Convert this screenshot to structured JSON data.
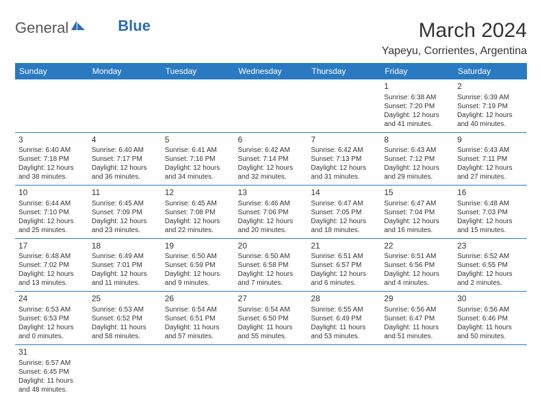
{
  "brand": {
    "general": "General",
    "blue": "Blue"
  },
  "title": "March 2024",
  "location": "Yapeyu, Corrientes, Argentina",
  "colors": {
    "header_bg": "#2a7ac2",
    "header_text": "#ffffff",
    "brand_blue": "#2a6db5",
    "rule": "#2a7ac2",
    "text": "#333333",
    "bg": "#ffffff"
  },
  "weekdays": [
    "Sunday",
    "Monday",
    "Tuesday",
    "Wednesday",
    "Thursday",
    "Friday",
    "Saturday"
  ],
  "weeks": [
    [
      null,
      null,
      null,
      null,
      null,
      {
        "n": "1",
        "sr": "Sunrise: 6:38 AM",
        "ss": "Sunset: 7:20 PM",
        "d1": "Daylight: 12 hours",
        "d2": "and 41 minutes."
      },
      {
        "n": "2",
        "sr": "Sunrise: 6:39 AM",
        "ss": "Sunset: 7:19 PM",
        "d1": "Daylight: 12 hours",
        "d2": "and 40 minutes."
      }
    ],
    [
      {
        "n": "3",
        "sr": "Sunrise: 6:40 AM",
        "ss": "Sunset: 7:18 PM",
        "d1": "Daylight: 12 hours",
        "d2": "and 38 minutes."
      },
      {
        "n": "4",
        "sr": "Sunrise: 6:40 AM",
        "ss": "Sunset: 7:17 PM",
        "d1": "Daylight: 12 hours",
        "d2": "and 36 minutes."
      },
      {
        "n": "5",
        "sr": "Sunrise: 6:41 AM",
        "ss": "Sunset: 7:16 PM",
        "d1": "Daylight: 12 hours",
        "d2": "and 34 minutes."
      },
      {
        "n": "6",
        "sr": "Sunrise: 6:42 AM",
        "ss": "Sunset: 7:14 PM",
        "d1": "Daylight: 12 hours",
        "d2": "and 32 minutes."
      },
      {
        "n": "7",
        "sr": "Sunrise: 6:42 AM",
        "ss": "Sunset: 7:13 PM",
        "d1": "Daylight: 12 hours",
        "d2": "and 31 minutes."
      },
      {
        "n": "8",
        "sr": "Sunrise: 6:43 AM",
        "ss": "Sunset: 7:12 PM",
        "d1": "Daylight: 12 hours",
        "d2": "and 29 minutes."
      },
      {
        "n": "9",
        "sr": "Sunrise: 6:43 AM",
        "ss": "Sunset: 7:11 PM",
        "d1": "Daylight: 12 hours",
        "d2": "and 27 minutes."
      }
    ],
    [
      {
        "n": "10",
        "sr": "Sunrise: 6:44 AM",
        "ss": "Sunset: 7:10 PM",
        "d1": "Daylight: 12 hours",
        "d2": "and 25 minutes."
      },
      {
        "n": "11",
        "sr": "Sunrise: 6:45 AM",
        "ss": "Sunset: 7:09 PM",
        "d1": "Daylight: 12 hours",
        "d2": "and 23 minutes."
      },
      {
        "n": "12",
        "sr": "Sunrise: 6:45 AM",
        "ss": "Sunset: 7:08 PM",
        "d1": "Daylight: 12 hours",
        "d2": "and 22 minutes."
      },
      {
        "n": "13",
        "sr": "Sunrise: 6:46 AM",
        "ss": "Sunset: 7:06 PM",
        "d1": "Daylight: 12 hours",
        "d2": "and 20 minutes."
      },
      {
        "n": "14",
        "sr": "Sunrise: 6:47 AM",
        "ss": "Sunset: 7:05 PM",
        "d1": "Daylight: 12 hours",
        "d2": "and 18 minutes."
      },
      {
        "n": "15",
        "sr": "Sunrise: 6:47 AM",
        "ss": "Sunset: 7:04 PM",
        "d1": "Daylight: 12 hours",
        "d2": "and 16 minutes."
      },
      {
        "n": "16",
        "sr": "Sunrise: 6:48 AM",
        "ss": "Sunset: 7:03 PM",
        "d1": "Daylight: 12 hours",
        "d2": "and 15 minutes."
      }
    ],
    [
      {
        "n": "17",
        "sr": "Sunrise: 6:48 AM",
        "ss": "Sunset: 7:02 PM",
        "d1": "Daylight: 12 hours",
        "d2": "and 13 minutes."
      },
      {
        "n": "18",
        "sr": "Sunrise: 6:49 AM",
        "ss": "Sunset: 7:01 PM",
        "d1": "Daylight: 12 hours",
        "d2": "and 11 minutes."
      },
      {
        "n": "19",
        "sr": "Sunrise: 6:50 AM",
        "ss": "Sunset: 6:59 PM",
        "d1": "Daylight: 12 hours",
        "d2": "and 9 minutes."
      },
      {
        "n": "20",
        "sr": "Sunrise: 6:50 AM",
        "ss": "Sunset: 6:58 PM",
        "d1": "Daylight: 12 hours",
        "d2": "and 7 minutes."
      },
      {
        "n": "21",
        "sr": "Sunrise: 6:51 AM",
        "ss": "Sunset: 6:57 PM",
        "d1": "Daylight: 12 hours",
        "d2": "and 6 minutes."
      },
      {
        "n": "22",
        "sr": "Sunrise: 6:51 AM",
        "ss": "Sunset: 6:56 PM",
        "d1": "Daylight: 12 hours",
        "d2": "and 4 minutes."
      },
      {
        "n": "23",
        "sr": "Sunrise: 6:52 AM",
        "ss": "Sunset: 6:55 PM",
        "d1": "Daylight: 12 hours",
        "d2": "and 2 minutes."
      }
    ],
    [
      {
        "n": "24",
        "sr": "Sunrise: 6:53 AM",
        "ss": "Sunset: 6:53 PM",
        "d1": "Daylight: 12 hours",
        "d2": "and 0 minutes."
      },
      {
        "n": "25",
        "sr": "Sunrise: 6:53 AM",
        "ss": "Sunset: 6:52 PM",
        "d1": "Daylight: 11 hours",
        "d2": "and 58 minutes."
      },
      {
        "n": "26",
        "sr": "Sunrise: 6:54 AM",
        "ss": "Sunset: 6:51 PM",
        "d1": "Daylight: 11 hours",
        "d2": "and 57 minutes."
      },
      {
        "n": "27",
        "sr": "Sunrise: 6:54 AM",
        "ss": "Sunset: 6:50 PM",
        "d1": "Daylight: 11 hours",
        "d2": "and 55 minutes."
      },
      {
        "n": "28",
        "sr": "Sunrise: 6:55 AM",
        "ss": "Sunset: 6:49 PM",
        "d1": "Daylight: 11 hours",
        "d2": "and 53 minutes."
      },
      {
        "n": "29",
        "sr": "Sunrise: 6:56 AM",
        "ss": "Sunset: 6:47 PM",
        "d1": "Daylight: 11 hours",
        "d2": "and 51 minutes."
      },
      {
        "n": "30",
        "sr": "Sunrise: 6:56 AM",
        "ss": "Sunset: 6:46 PM",
        "d1": "Daylight: 11 hours",
        "d2": "and 50 minutes."
      }
    ],
    [
      {
        "n": "31",
        "sr": "Sunrise: 6:57 AM",
        "ss": "Sunset: 6:45 PM",
        "d1": "Daylight: 11 hours",
        "d2": "and 48 minutes."
      },
      null,
      null,
      null,
      null,
      null,
      null
    ]
  ]
}
